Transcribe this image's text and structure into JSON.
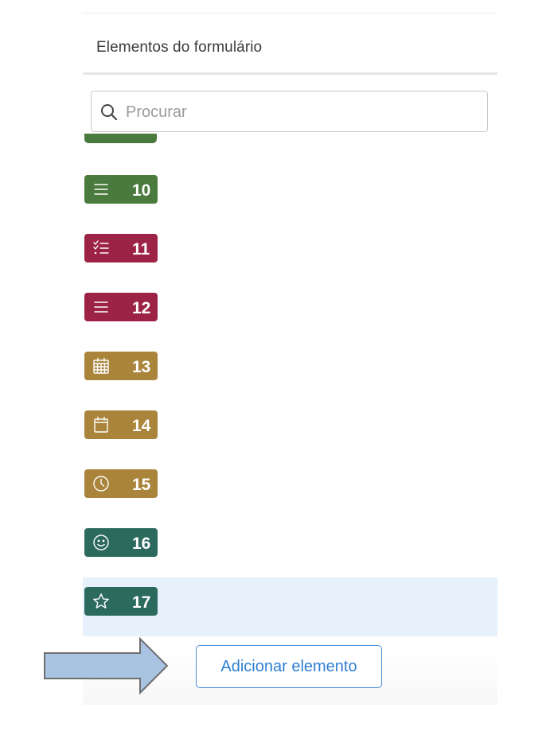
{
  "panel": {
    "title": "Elementos do formulário"
  },
  "search": {
    "placeholder": "Procurar",
    "value": ""
  },
  "items": [
    {
      "number": "10",
      "icon": "lines-icon",
      "color": "#4a7a3d"
    },
    {
      "number": "11",
      "icon": "checklist-icon",
      "color": "#9c2346"
    },
    {
      "number": "12",
      "icon": "lines-icon",
      "color": "#9c2346"
    },
    {
      "number": "13",
      "icon": "calendar-grid-icon",
      "color": "#a9843a"
    },
    {
      "number": "14",
      "icon": "calendar-icon",
      "color": "#a9843a"
    },
    {
      "number": "15",
      "icon": "clock-icon",
      "color": "#a9843a"
    },
    {
      "number": "16",
      "icon": "smiley-icon",
      "color": "#2d6a5e"
    },
    {
      "number": "17",
      "icon": "star-icon",
      "color": "#2d6a5e",
      "selected": true
    }
  ],
  "footer": {
    "add_button_label": "Adicionar elemento"
  },
  "colors": {
    "accent": "#2f7fd1",
    "arrow_fill": "#a9c3e2",
    "selected_row": "#e6f1fb"
  }
}
